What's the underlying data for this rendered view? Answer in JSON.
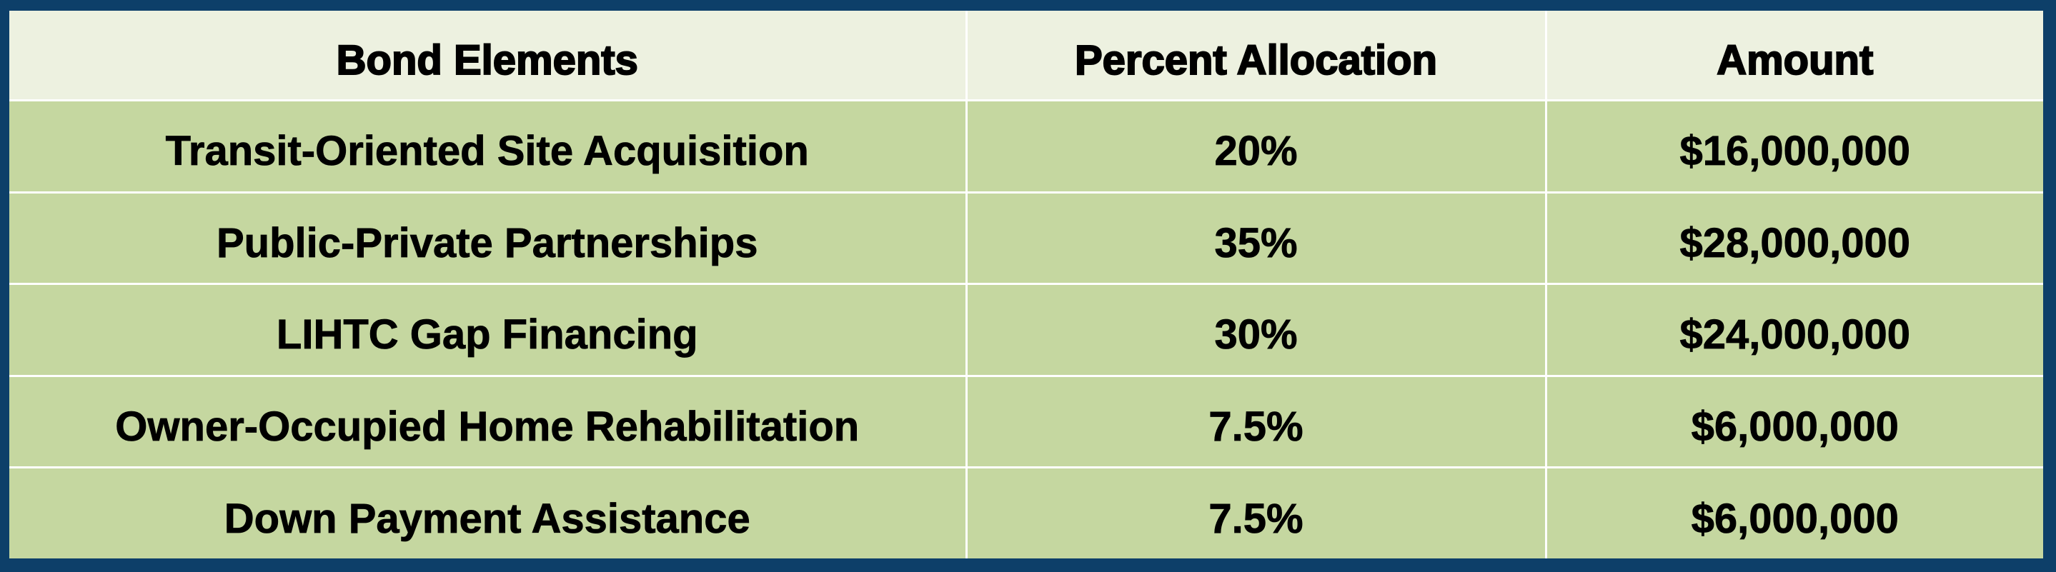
{
  "table": {
    "header": [
      "Bond Elements",
      "Percent Allocation",
      "Amount"
    ],
    "rows": [
      [
        "Transit-Oriented Site Acquisition",
        "20%",
        "$16,000,000"
      ],
      [
        "Public-Private Partnerships",
        "35%",
        "$28,000,000"
      ],
      [
        "LIHTC Gap Financing",
        "30%",
        "$24,000,000"
      ],
      [
        "Owner-Occupied Home Rehabilitation",
        "7.5%",
        "$6,000,000"
      ],
      [
        "Down Payment Assistance",
        "7.5%",
        "$6,000,000"
      ]
    ]
  }
}
